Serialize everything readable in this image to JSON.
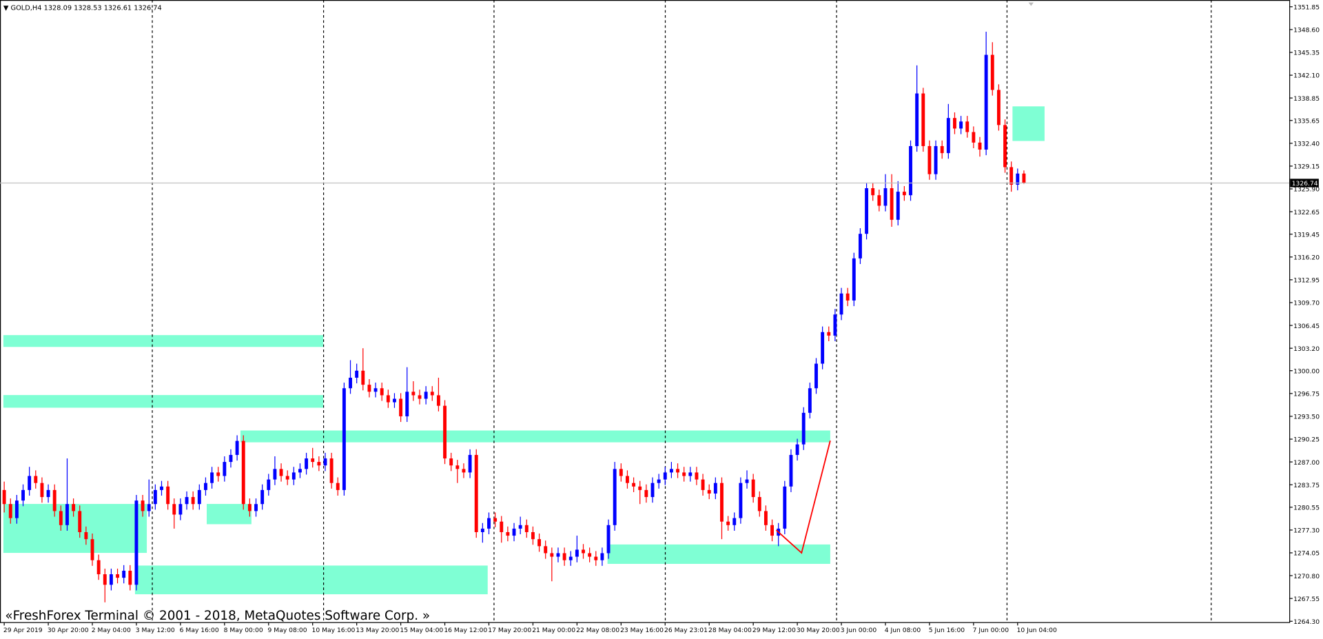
{
  "chart_data": {
    "type": "candlestick",
    "symbol": "GOLD,H4",
    "header_ohlc": [
      1328.09,
      1328.53,
      1326.61,
      1326.74
    ],
    "footer": "«FreshForex Terminal © 2001 - 2018, MetaQuotes Software Corp. »",
    "current_price": 1326.74,
    "up_color": "#0000ff",
    "down_color": "#ff0000",
    "ylim": [
      1264.3,
      1351.85
    ],
    "yticks": [
      {
        "value": 1264.3,
        "label": "1264.30"
      },
      {
        "value": 1267.55,
        "label": "1267.55"
      },
      {
        "value": 1270.8,
        "label": "1270.80"
      },
      {
        "value": 1274.05,
        "label": "1274.05"
      },
      {
        "value": 1277.3,
        "label": "1277.30"
      },
      {
        "value": 1280.55,
        "label": "1280.55"
      },
      {
        "value": 1283.75,
        "label": "1283.75"
      },
      {
        "value": 1287,
        "label": "1287.00"
      },
      {
        "value": 1290.25,
        "label": "1290.25"
      },
      {
        "value": 1293.5,
        "label": "1293.50"
      },
      {
        "value": 1296.75,
        "label": "1296.75"
      },
      {
        "value": 1300,
        "label": "1300.00"
      },
      {
        "value": 1303.2,
        "label": "1303.20"
      },
      {
        "value": 1306.45,
        "label": "1306.45"
      },
      {
        "value": 1309.7,
        "label": "1309.70"
      },
      {
        "value": 1312.95,
        "label": "1312.95"
      },
      {
        "value": 1316.2,
        "label": "1316.20"
      },
      {
        "value": 1319.45,
        "label": "1319.45"
      },
      {
        "value": 1322.65,
        "label": "1322.65"
      },
      {
        "value": 1325.9,
        "label": "1325.90"
      },
      {
        "value": 1329.15,
        "label": "1329.15"
      },
      {
        "value": 1332.4,
        "label": "1332.40"
      },
      {
        "value": 1335.65,
        "label": "1335.65"
      },
      {
        "value": 1338.85,
        "label": "1338.85"
      },
      {
        "value": 1342.1,
        "label": "1342.10"
      },
      {
        "value": 1345.35,
        "label": "1345.35"
      },
      {
        "value": 1348.6,
        "label": "1348.60"
      },
      {
        "value": 1351.85,
        "label": "1351.85"
      }
    ],
    "categories": [
      "29 Apr 2019",
      null,
      null,
      null,
      null,
      null,
      null,
      "30 Apr 20:00",
      null,
      null,
      null,
      null,
      null,
      null,
      "2 May 04:00",
      null,
      null,
      null,
      null,
      null,
      null,
      "3 May 12:00",
      null,
      null,
      null,
      null,
      null,
      null,
      "6 May 16:00",
      null,
      null,
      null,
      null,
      null,
      null,
      "8 May 00:00",
      null,
      null,
      null,
      null,
      null,
      null,
      "9 May 08:00",
      null,
      null,
      null,
      null,
      null,
      null,
      "10 May 16:00",
      null,
      null,
      null,
      null,
      null,
      null,
      "13 May 20:00",
      null,
      null,
      null,
      null,
      null,
      null,
      "15 May 04:00",
      null,
      null,
      null,
      null,
      null,
      null,
      "16 May 12:00",
      null,
      null,
      null,
      null,
      null,
      null,
      "17 May 20:00",
      null,
      null,
      null,
      null,
      null,
      null,
      "21 May 00:00",
      null,
      null,
      null,
      null,
      null,
      null,
      "22 May 08:00",
      null,
      null,
      null,
      null,
      null,
      null,
      "23 May 16:00",
      null,
      null,
      null,
      null,
      null,
      null,
      "26 May 23:01",
      null,
      null,
      null,
      null,
      null,
      null,
      "28 May 04:00",
      null,
      null,
      null,
      null,
      null,
      null,
      "29 May 12:00",
      null,
      null,
      null,
      null,
      null,
      null,
      "30 May 20:00",
      null,
      null,
      null,
      null,
      null,
      null,
      "3 Jun 00:00",
      null,
      null,
      null,
      null,
      null,
      null,
      "4 Jun 08:00",
      null,
      null,
      null,
      null,
      null,
      null,
      "5 Jun 16:00",
      null,
      null,
      null,
      null,
      null,
      null,
      "7 Jun 00:00",
      null,
      null,
      null,
      null,
      null,
      null,
      "10 Jun 04:00",
      null
    ],
    "ohlc": [
      [
        1283,
        1284.2,
        1279.8,
        1281
      ],
      [
        1281,
        1281.8,
        1278.2,
        1279
      ],
      [
        1279,
        1282.3,
        1278.2,
        1281.5
      ],
      [
        1281.5,
        1283.8,
        1280.7,
        1283
      ],
      [
        1283,
        1286.3,
        1282.2,
        1285
      ],
      [
        1285,
        1285.8,
        1283.2,
        1284
      ],
      [
        1284,
        1284.8,
        1281.2,
        1282
      ],
      [
        1282,
        1283.8,
        1281.2,
        1283
      ],
      [
        1283,
        1283.8,
        1279.2,
        1280
      ],
      [
        1280,
        1280.8,
        1277.2,
        1278
      ],
      [
        1278,
        1287.5,
        1277.2,
        1281
      ],
      [
        1281,
        1281.8,
        1279.2,
        1280
      ],
      [
        1280,
        1280.8,
        1276.2,
        1277
      ],
      [
        1277,
        1277.8,
        1275.2,
        1276
      ],
      [
        1276,
        1276.8,
        1272.2,
        1273
      ],
      [
        1273,
        1273.8,
        1270.2,
        1271
      ],
      [
        1271,
        1271.8,
        1267,
        1269.5
      ],
      [
        1269.5,
        1271.8,
        1268.7,
        1271
      ],
      [
        1271,
        1271.8,
        1269.7,
        1270.5
      ],
      [
        1270.5,
        1272.3,
        1269.7,
        1271.5
      ],
      [
        1271.5,
        1272.3,
        1268.7,
        1269.5
      ],
      [
        1269.5,
        1282.3,
        1268.7,
        1281.5
      ],
      [
        1281.5,
        1282.3,
        1279.2,
        1280
      ],
      [
        1280,
        1284.5,
        1279.2,
        1281
      ],
      [
        1281,
        1283.8,
        1280.2,
        1283
      ],
      [
        1283,
        1284.3,
        1282.2,
        1283.5
      ],
      [
        1283.5,
        1284.3,
        1280.2,
        1281
      ],
      [
        1281,
        1281.8,
        1277.5,
        1279.5
      ],
      [
        1279.5,
        1281.8,
        1278.7,
        1281
      ],
      [
        1281,
        1282.8,
        1280.2,
        1282
      ],
      [
        1282,
        1282.8,
        1280.2,
        1281
      ],
      [
        1281,
        1283.8,
        1280.2,
        1283
      ],
      [
        1283,
        1284.8,
        1282.2,
        1284
      ],
      [
        1284,
        1286.3,
        1283.2,
        1285.5
      ],
      [
        1285.5,
        1286.3,
        1284.2,
        1285
      ],
      [
        1285,
        1287.8,
        1284.2,
        1287
      ],
      [
        1287,
        1288.8,
        1286.2,
        1288
      ],
      [
        1288,
        1290.8,
        1287.2,
        1290
      ],
      [
        1290,
        1290.8,
        1280.2,
        1281
      ],
      [
        1281,
        1281.8,
        1279.2,
        1280
      ],
      [
        1280,
        1281.8,
        1279.2,
        1281
      ],
      [
        1281,
        1283.8,
        1280.2,
        1283
      ],
      [
        1283,
        1285.3,
        1282.2,
        1284.5
      ],
      [
        1284.5,
        1287.8,
        1283.7,
        1286
      ],
      [
        1286,
        1286.8,
        1284.2,
        1285
      ],
      [
        1285,
        1285.8,
        1283.7,
        1284.5
      ],
      [
        1284.5,
        1286.3,
        1283.7,
        1285.5
      ],
      [
        1285.5,
        1286.8,
        1284.7,
        1286
      ],
      [
        1286,
        1288.3,
        1285.2,
        1287.5
      ],
      [
        1287.5,
        1289,
        1286.2,
        1287
      ],
      [
        1287,
        1287.8,
        1285.7,
        1286.5
      ],
      [
        1286.5,
        1288.3,
        1285.7,
        1287.5
      ],
      [
        1287.5,
        1288.3,
        1283.2,
        1284
      ],
      [
        1284,
        1284.8,
        1282.2,
        1283
      ],
      [
        1283,
        1298.3,
        1282.2,
        1297.5
      ],
      [
        1297.5,
        1301.5,
        1296.7,
        1299
      ],
      [
        1299,
        1301,
        1298.2,
        1300
      ],
      [
        1300,
        1303.2,
        1297.2,
        1298
      ],
      [
        1298,
        1298.8,
        1296.2,
        1297
      ],
      [
        1297,
        1298.3,
        1296.2,
        1297.5
      ],
      [
        1297.5,
        1298.3,
        1295.7,
        1296.5
      ],
      [
        1296.5,
        1297.3,
        1294.7,
        1295.5
      ],
      [
        1295.5,
        1296.8,
        1294.7,
        1296
      ],
      [
        1296,
        1296.8,
        1292.7,
        1293.5
      ],
      [
        1293.5,
        1300.5,
        1292.7,
        1297
      ],
      [
        1297,
        1298.5,
        1295.7,
        1296.5
      ],
      [
        1296.5,
        1297.3,
        1295.2,
        1296
      ],
      [
        1296,
        1297.8,
        1295.2,
        1297
      ],
      [
        1297,
        1297.8,
        1295.7,
        1296.5
      ],
      [
        1296.5,
        1299,
        1294.2,
        1295
      ],
      [
        1295,
        1295.8,
        1286.7,
        1287.5
      ],
      [
        1287.5,
        1288.3,
        1285.7,
        1286.5
      ],
      [
        1286.5,
        1287.3,
        1284,
        1286
      ],
      [
        1286,
        1286.8,
        1284.7,
        1285.5
      ],
      [
        1285.5,
        1288.8,
        1284.7,
        1288
      ],
      [
        1288,
        1288.8,
        1276.2,
        1277
      ],
      [
        1277,
        1278.3,
        1275.5,
        1277.5
      ],
      [
        1277.5,
        1279.8,
        1276.7,
        1279
      ],
      [
        1279,
        1279.8,
        1277.7,
        1278.5
      ],
      [
        1278.5,
        1279.3,
        1275.5,
        1277
      ],
      [
        1277,
        1277.8,
        1275.7,
        1276.5
      ],
      [
        1276.5,
        1278.3,
        1275.7,
        1277.5
      ],
      [
        1277.5,
        1279.2,
        1276.7,
        1278
      ],
      [
        1278,
        1278.8,
        1276.2,
        1277
      ],
      [
        1277,
        1277.8,
        1275.2,
        1276
      ],
      [
        1276,
        1276.8,
        1274.2,
        1275
      ],
      [
        1275,
        1275.8,
        1273.2,
        1274
      ],
      [
        1274,
        1274.8,
        1270,
        1273.5
      ],
      [
        1273.5,
        1274.8,
        1272.7,
        1274
      ],
      [
        1274,
        1274.8,
        1272.2,
        1273
      ],
      [
        1273,
        1274.3,
        1272.2,
        1273.5
      ],
      [
        1273.5,
        1276.5,
        1272.7,
        1274.5
      ],
      [
        1274.5,
        1275.3,
        1273.2,
        1274
      ],
      [
        1274,
        1274.8,
        1272.7,
        1273.5
      ],
      [
        1273.5,
        1274.3,
        1272.2,
        1273
      ],
      [
        1273,
        1274.8,
        1272.2,
        1274
      ],
      [
        1274,
        1278.8,
        1273.2,
        1278
      ],
      [
        1278,
        1287,
        1277.2,
        1286
      ],
      [
        1286,
        1286.8,
        1284.2,
        1285
      ],
      [
        1285,
        1285.8,
        1283.2,
        1284
      ],
      [
        1284,
        1284.8,
        1282.7,
        1283.5
      ],
      [
        1283.5,
        1284.3,
        1281,
        1283
      ],
      [
        1283,
        1283.8,
        1281.2,
        1282
      ],
      [
        1282,
        1284.8,
        1281.2,
        1284
      ],
      [
        1284,
        1285.3,
        1283.2,
        1284.5
      ],
      [
        1284.5,
        1286.3,
        1283.7,
        1285.5
      ],
      [
        1285.5,
        1287,
        1284.7,
        1286
      ],
      [
        1286,
        1286.8,
        1284.7,
        1285.5
      ],
      [
        1285.5,
        1286.3,
        1284.2,
        1285
      ],
      [
        1285,
        1286.3,
        1284.2,
        1285.5
      ],
      [
        1285.5,
        1286.3,
        1283.7,
        1284.5
      ],
      [
        1284.5,
        1285.3,
        1282.2,
        1283
      ],
      [
        1283,
        1283.8,
        1281.7,
        1282.5
      ],
      [
        1282.5,
        1284.8,
        1281.7,
        1284
      ],
      [
        1284,
        1284.8,
        1276,
        1278.5
      ],
      [
        1278.5,
        1279.3,
        1277.2,
        1278
      ],
      [
        1278,
        1279.8,
        1277.2,
        1279
      ],
      [
        1279,
        1284.8,
        1278.2,
        1284
      ],
      [
        1284,
        1285.8,
        1283.2,
        1284.5
      ],
      [
        1284.5,
        1285.3,
        1281.2,
        1282
      ],
      [
        1282,
        1282.8,
        1279.2,
        1280
      ],
      [
        1280,
        1280.8,
        1277.2,
        1278
      ],
      [
        1278,
        1278.8,
        1275.7,
        1276.5
      ],
      [
        1276.5,
        1278.3,
        1275,
        1277.5
      ],
      [
        1277.5,
        1284.3,
        1276.7,
        1283.5
      ],
      [
        1283.5,
        1288.8,
        1282.7,
        1288
      ],
      [
        1288,
        1290.3,
        1287.2,
        1289.5
      ],
      [
        1289.5,
        1294.8,
        1288.7,
        1294
      ],
      [
        1294,
        1298.3,
        1293.2,
        1297.5
      ],
      [
        1297.5,
        1301.8,
        1296.7,
        1301
      ],
      [
        1301,
        1306.3,
        1300.2,
        1305.5
      ],
      [
        1305.5,
        1306.3,
        1304.2,
        1305
      ],
      [
        1305,
        1308.8,
        1304.2,
        1308
      ],
      [
        1308,
        1311.8,
        1307.2,
        1311
      ],
      [
        1311,
        1311.8,
        1309.2,
        1310
      ],
      [
        1310,
        1316.8,
        1309.2,
        1316
      ],
      [
        1316,
        1320.3,
        1315.2,
        1319.5
      ],
      [
        1319.5,
        1326.8,
        1318.7,
        1326
      ],
      [
        1326,
        1326.8,
        1324.2,
        1325
      ],
      [
        1325,
        1325.8,
        1322.7,
        1323.5
      ],
      [
        1323.5,
        1328,
        1322.7,
        1326
      ],
      [
        1326,
        1328,
        1320.5,
        1321.5
      ],
      [
        1321.5,
        1327,
        1320.7,
        1325.5
      ],
      [
        1325.5,
        1326.3,
        1324.2,
        1325
      ],
      [
        1325,
        1332.8,
        1324.2,
        1332
      ],
      [
        1332,
        1343.5,
        1331.2,
        1339.5
      ],
      [
        1339.5,
        1340.3,
        1331.2,
        1332
      ],
      [
        1332,
        1332.8,
        1327.2,
        1328
      ],
      [
        1328,
        1332.8,
        1327.2,
        1332
      ],
      [
        1332,
        1332.8,
        1330.2,
        1331
      ],
      [
        1331,
        1338,
        1330.2,
        1336
      ],
      [
        1336,
        1336.8,
        1333.7,
        1334.5
      ],
      [
        1334.5,
        1336.3,
        1333.7,
        1335.5
      ],
      [
        1335.5,
        1336.3,
        1333.2,
        1334
      ],
      [
        1334,
        1334.8,
        1331.7,
        1332.5
      ],
      [
        1332.5,
        1333.3,
        1330.5,
        1331.5
      ],
      [
        1331.5,
        1348.3,
        1330.7,
        1345
      ],
      [
        1345,
        1346.8,
        1339.2,
        1340
      ],
      [
        1340,
        1340.8,
        1334.2,
        1335
      ],
      [
        1335,
        1335.8,
        1328.2,
        1329
      ],
      [
        1329,
        1329.8,
        1325.5,
        1326.5
      ],
      [
        1326.5,
        1328.8,
        1325.7,
        1328.09
      ],
      [
        1328.09,
        1328.53,
        1326.61,
        1326.74
      ]
    ]
  }
}
